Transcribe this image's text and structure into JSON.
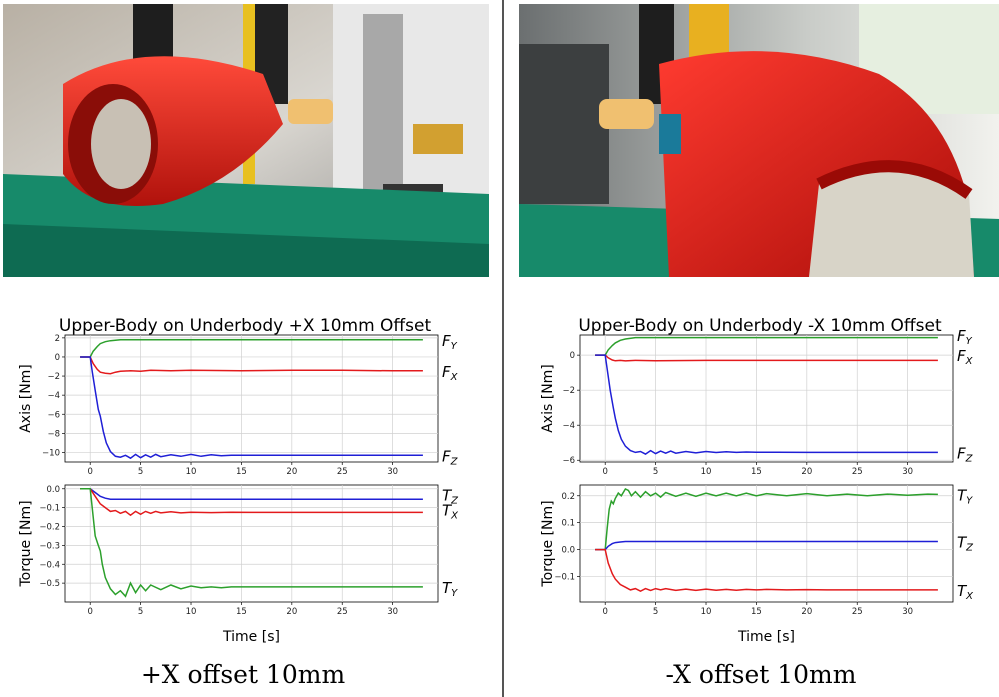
{
  "photos": {
    "left": {
      "subject": "red upper body part held by gripper over green underbody"
    },
    "right": {
      "subject": "red upper body part held by gripper, close view"
    }
  },
  "captions": {
    "left": "+X offset 10mm",
    "right": "-X offset 10mm"
  },
  "colors": {
    "green": "#2ca02c",
    "red": "#e31a1c",
    "blue": "#1f1fd6"
  },
  "chart_data": [
    {
      "type": "line",
      "title": "Upper-Body on Underbody +X 10mm Offset",
      "xlabel": "",
      "ylabel": "Axis [Nm]",
      "xlim": [
        -2.5,
        34.5
      ],
      "ylim": [
        -11,
        2.3
      ],
      "xticks": [
        0,
        5,
        10,
        15,
        20,
        25,
        30
      ],
      "yticks": [
        2,
        0,
        -2,
        -4,
        -6,
        -8,
        -10
      ],
      "ytick_labels": [
        "2",
        "0",
        "−2",
        "−4",
        "−6",
        "−8",
        "−10"
      ],
      "grid": true,
      "series": [
        {
          "name": "F",
          "sub": "Y",
          "color": "#2ca02c",
          "x": [
            -1,
            0,
            0.3,
            0.7,
            1,
            1.5,
            2,
            2.5,
            3,
            4,
            6,
            10,
            15,
            20,
            25,
            30,
            33
          ],
          "y": [
            0,
            0,
            0.6,
            1.1,
            1.4,
            1.6,
            1.7,
            1.75,
            1.8,
            1.8,
            1.8,
            1.8,
            1.8,
            1.8,
            1.8,
            1.8,
            1.8
          ]
        },
        {
          "name": "F",
          "sub": "X",
          "color": "#e31a1c",
          "x": [
            -1,
            0,
            0.3,
            0.7,
            1,
            1.5,
            2,
            2.5,
            3,
            4,
            5,
            6,
            8,
            10,
            15,
            20,
            25,
            30,
            33
          ],
          "y": [
            0,
            0,
            -0.7,
            -1.3,
            -1.6,
            -1.7,
            -1.75,
            -1.6,
            -1.5,
            -1.45,
            -1.5,
            -1.4,
            -1.45,
            -1.4,
            -1.45,
            -1.4,
            -1.4,
            -1.45,
            -1.45
          ]
        },
        {
          "name": "F",
          "sub": "Z",
          "color": "#1f1fd6",
          "x": [
            -1,
            0,
            0.2,
            0.5,
            0.8,
            1,
            1.3,
            1.6,
            2,
            2.5,
            3,
            3.5,
            4,
            4.5,
            5,
            5.5,
            6,
            6.5,
            7,
            8,
            9,
            10,
            11,
            12,
            13,
            14,
            15,
            17,
            20,
            25,
            30,
            33
          ],
          "y": [
            0,
            0,
            -1.5,
            -3.5,
            -5.5,
            -6.2,
            -7.8,
            -9.0,
            -9.9,
            -10.4,
            -10.5,
            -10.3,
            -10.6,
            -10.2,
            -10.55,
            -10.25,
            -10.5,
            -10.2,
            -10.45,
            -10.25,
            -10.4,
            -10.2,
            -10.4,
            -10.25,
            -10.35,
            -10.3,
            -10.3,
            -10.3,
            -10.3,
            -10.3,
            -10.3,
            -10.3
          ]
        }
      ],
      "series_labels": [
        {
          "name": "F",
          "sub": "Y",
          "y": 1.8
        },
        {
          "name": "F",
          "sub": "X",
          "y": -1.45
        },
        {
          "name": "F",
          "sub": "Z",
          "y": -10.3
        }
      ]
    },
    {
      "type": "line",
      "title": "",
      "xlabel": "Time [s]",
      "ylabel": "Torque [Nm]",
      "xlim": [
        -2.5,
        34.5
      ],
      "ylim": [
        -0.6,
        0.02
      ],
      "xticks": [
        0,
        5,
        10,
        15,
        20,
        25,
        30
      ],
      "yticks": [
        0.0,
        -0.1,
        -0.2,
        -0.3,
        -0.4,
        -0.5
      ],
      "ytick_labels": [
        "0.0",
        "−0.1",
        "−0.2",
        "−0.3",
        "−0.4",
        "−0.5"
      ],
      "grid": true,
      "series": [
        {
          "name": "T",
          "sub": "Z",
          "color": "#1f1fd6",
          "x": [
            -1,
            0,
            0.5,
            1,
            1.5,
            2,
            3,
            5,
            10,
            15,
            20,
            25,
            30,
            33
          ],
          "y": [
            0,
            0,
            -0.02,
            -0.04,
            -0.05,
            -0.055,
            -0.055,
            -0.055,
            -0.055,
            -0.055,
            -0.055,
            -0.055,
            -0.055,
            -0.055
          ]
        },
        {
          "name": "T",
          "sub": "X",
          "color": "#e31a1c",
          "x": [
            -1,
            0,
            0.5,
            1,
            1.5,
            2,
            2.5,
            3,
            3.5,
            4,
            4.5,
            5,
            5.5,
            6,
            6.5,
            7,
            8,
            9,
            10,
            12,
            14,
            16,
            20,
            25,
            30,
            33
          ],
          "y": [
            0,
            0,
            -0.04,
            -0.08,
            -0.1,
            -0.12,
            -0.115,
            -0.13,
            -0.12,
            -0.14,
            -0.12,
            -0.135,
            -0.12,
            -0.13,
            -0.12,
            -0.128,
            -0.122,
            -0.128,
            -0.124,
            -0.126,
            -0.124,
            -0.125,
            -0.125,
            -0.125,
            -0.125,
            -0.125
          ]
        },
        {
          "name": "T",
          "sub": "Y",
          "color": "#2ca02c",
          "x": [
            -1,
            0,
            0.2,
            0.5,
            0.8,
            1,
            1.2,
            1.5,
            2,
            2.5,
            3,
            3.5,
            4,
            4.5,
            5,
            5.5,
            6,
            7,
            8,
            9,
            10,
            11,
            12,
            13,
            14,
            15,
            17,
            20,
            25,
            30,
            33
          ],
          "y": [
            0,
            0,
            -0.1,
            -0.25,
            -0.3,
            -0.33,
            -0.4,
            -0.47,
            -0.53,
            -0.56,
            -0.54,
            -0.57,
            -0.5,
            -0.55,
            -0.51,
            -0.54,
            -0.51,
            -0.535,
            -0.51,
            -0.53,
            -0.515,
            -0.525,
            -0.52,
            -0.525,
            -0.52,
            -0.52,
            -0.52,
            -0.52,
            -0.52,
            -0.52,
            -0.52
          ]
        }
      ],
      "series_labels": [
        {
          "name": "T",
          "sub": "Z",
          "y": -0.03
        },
        {
          "name": "T",
          "sub": "X",
          "y": -0.11
        },
        {
          "name": "T",
          "sub": "Y",
          "y": -0.52
        }
      ]
    },
    {
      "type": "line",
      "title": "Upper-Body on Underbody -X 10mm Offset",
      "xlabel": "",
      "ylabel": "Axis [Nm]",
      "xlim": [
        -2.5,
        34.5
      ],
      "ylim": [
        -6.1,
        1.15
      ],
      "xticks": [
        0,
        5,
        10,
        15,
        20,
        25,
        30
      ],
      "yticks": [
        0,
        -2,
        -4,
        -6
      ],
      "ytick_labels": [
        "0",
        "−2",
        "−4",
        "−6"
      ],
      "grid": true,
      "series": [
        {
          "name": "F",
          "sub": "Y",
          "color": "#2ca02c",
          "x": [
            -1,
            0,
            0.3,
            0.7,
            1,
            1.5,
            2,
            3,
            4,
            6,
            10,
            15,
            20,
            25,
            30,
            33
          ],
          "y": [
            0,
            0,
            0.3,
            0.55,
            0.7,
            0.85,
            0.92,
            1.0,
            1.0,
            1.0,
            1.0,
            1.0,
            1.0,
            1.0,
            1.0,
            1.0
          ]
        },
        {
          "name": "F",
          "sub": "X",
          "color": "#e31a1c",
          "x": [
            -1,
            0,
            0.3,
            0.7,
            1,
            1.5,
            2,
            3,
            5,
            10,
            15,
            20,
            25,
            30,
            33
          ],
          "y": [
            0,
            0,
            -0.15,
            -0.28,
            -0.32,
            -0.3,
            -0.33,
            -0.3,
            -0.32,
            -0.3,
            -0.3,
            -0.3,
            -0.3,
            -0.3,
            -0.3
          ]
        },
        {
          "name": "F",
          "sub": "Z",
          "color": "#1f1fd6",
          "x": [
            -1,
            0,
            0.2,
            0.5,
            0.8,
            1,
            1.3,
            1.6,
            2,
            2.5,
            3,
            3.5,
            4,
            4.5,
            5,
            5.5,
            6,
            6.5,
            7,
            8,
            9,
            10,
            11,
            12,
            13,
            14,
            15,
            17,
            20,
            25,
            30,
            33
          ],
          "y": [
            0,
            0,
            -0.8,
            -2.0,
            -3.0,
            -3.6,
            -4.3,
            -4.8,
            -5.2,
            -5.45,
            -5.55,
            -5.5,
            -5.65,
            -5.45,
            -5.62,
            -5.48,
            -5.6,
            -5.48,
            -5.6,
            -5.5,
            -5.58,
            -5.5,
            -5.56,
            -5.52,
            -5.55,
            -5.53,
            -5.54,
            -5.54,
            -5.55,
            -5.55,
            -5.55,
            -5.55
          ]
        }
      ],
      "series_labels": [
        {
          "name": "F",
          "sub": "Y",
          "y": 1.15
        },
        {
          "name": "F",
          "sub": "X",
          "y": 0.0
        },
        {
          "name": "F",
          "sub": "Z",
          "y": -5.55
        }
      ]
    },
    {
      "type": "line",
      "title": "",
      "xlabel": "Time [s]",
      "ylabel": "Torque [Nm]",
      "xlim": [
        -2.5,
        34.5
      ],
      "ylim": [
        -0.195,
        0.24
      ],
      "xticks": [
        0,
        5,
        10,
        15,
        20,
        25,
        30
      ],
      "yticks": [
        0.2,
        0.1,
        0.0,
        -0.1
      ],
      "ytick_labels": [
        "0.2",
        "0.1",
        "0.0",
        "−0.1"
      ],
      "grid": true,
      "series": [
        {
          "name": "T",
          "sub": "Y",
          "color": "#2ca02c",
          "x": [
            -1,
            0,
            0.2,
            0.4,
            0.6,
            0.8,
            1,
            1.3,
            1.6,
            2,
            2.3,
            2.6,
            3,
            3.5,
            4,
            4.5,
            5,
            5.5,
            6,
            7,
            8,
            9,
            10,
            11,
            12,
            13,
            14,
            15,
            16,
            18,
            20,
            22,
            24,
            26,
            28,
            30,
            32,
            33
          ],
          "y": [
            0,
            0,
            0.08,
            0.15,
            0.18,
            0.17,
            0.19,
            0.21,
            0.2,
            0.225,
            0.22,
            0.2,
            0.215,
            0.195,
            0.215,
            0.2,
            0.21,
            0.195,
            0.212,
            0.198,
            0.21,
            0.198,
            0.21,
            0.2,
            0.21,
            0.2,
            0.21,
            0.2,
            0.208,
            0.2,
            0.208,
            0.2,
            0.206,
            0.2,
            0.206,
            0.202,
            0.206,
            0.205
          ]
        },
        {
          "name": "T",
          "sub": "Z",
          "color": "#1f1fd6",
          "x": [
            -1,
            0,
            0.3,
            0.7,
            1,
            1.5,
            2,
            3,
            5,
            10,
            15,
            20,
            25,
            30,
            33
          ],
          "y": [
            0,
            0,
            0.012,
            0.022,
            0.026,
            0.028,
            0.03,
            0.03,
            0.03,
            0.03,
            0.03,
            0.03,
            0.03,
            0.03,
            0.03
          ]
        },
        {
          "name": "T",
          "sub": "X",
          "color": "#e31a1c",
          "x": [
            -1,
            0,
            0.3,
            0.7,
            1,
            1.5,
            2,
            2.5,
            3,
            3.5,
            4,
            4.5,
            5,
            5.5,
            6,
            7,
            8,
            9,
            10,
            11,
            12,
            13,
            14,
            15,
            16,
            18,
            20,
            22,
            25,
            30,
            33
          ],
          "y": [
            0,
            0,
            -0.05,
            -0.09,
            -0.11,
            -0.13,
            -0.14,
            -0.15,
            -0.145,
            -0.155,
            -0.145,
            -0.152,
            -0.145,
            -0.15,
            -0.145,
            -0.152,
            -0.147,
            -0.152,
            -0.147,
            -0.151,
            -0.148,
            -0.151,
            -0.148,
            -0.15,
            -0.148,
            -0.15,
            -0.149,
            -0.15,
            -0.15,
            -0.15,
            -0.15
          ]
        }
      ],
      "series_labels": [
        {
          "name": "T",
          "sub": "Y",
          "y": 0.205
        },
        {
          "name": "T",
          "sub": "Z",
          "y": 0.03
        },
        {
          "name": "T",
          "sub": "X",
          "y": -0.15
        }
      ]
    }
  ]
}
